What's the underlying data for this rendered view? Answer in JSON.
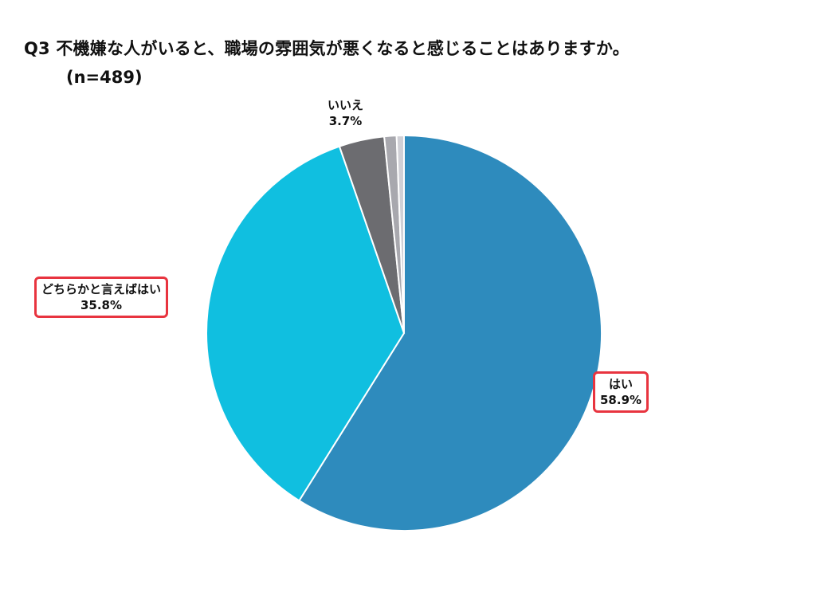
{
  "title": {
    "line1": "Q3 不機嫌な人がいると、職場の雰囲気が悪くなると感じることはありますか。",
    "line2": "(n=489)"
  },
  "chart_data": {
    "type": "pie",
    "start_angle_deg": 0,
    "direction": "clockwise",
    "slices": [
      {
        "label": "はい",
        "value": 58.9,
        "value_label": "58.9%",
        "color": "#2e8bbd",
        "highlighted": true
      },
      {
        "label": "どちらかと言えばはい",
        "value": 35.8,
        "value_label": "35.8%",
        "color": "#10bfe0",
        "highlighted": true
      },
      {
        "label": "いいえ",
        "value": 3.7,
        "value_label": "3.7%",
        "color": "#6c6c70",
        "highlighted": false
      },
      {
        "label": "",
        "value": 1.0,
        "value_label": "",
        "color": "#a8a8ae",
        "highlighted": false
      },
      {
        "label": "",
        "value": 0.6,
        "value_label": "",
        "color": "#d0d0d6",
        "highlighted": false
      }
    ],
    "highlight_color": "#e8343f"
  }
}
